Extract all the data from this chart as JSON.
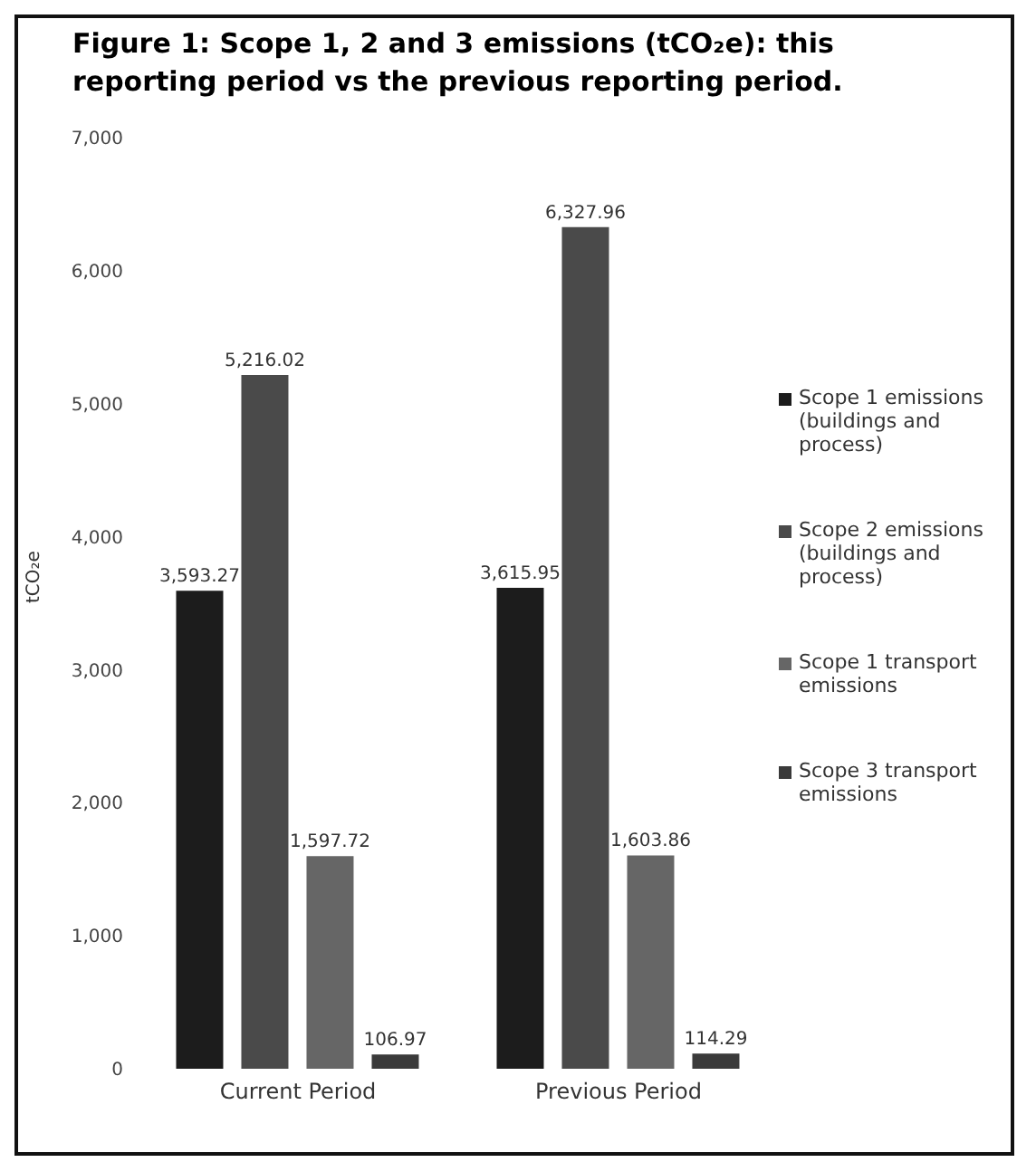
{
  "chart_data": {
    "type": "bar",
    "title": "Figure 1: Scope 1, 2 and 3 emissions (tCO₂e): this reporting period vs the previous reporting period.",
    "ylabel": "tCO₂e",
    "categories": [
      "Current Period",
      "Previous Period"
    ],
    "series": [
      {
        "name": "Scope 1 emissions (buildings and process)",
        "color": "#1c1c1c",
        "values": [
          3593.27,
          3615.95
        ],
        "value_labels": [
          "3,593.27",
          "3,615.95"
        ]
      },
      {
        "name": "Scope 2 emissions (buildings and process)",
        "color": "#4a4a4a",
        "values": [
          5216.02,
          6327.96
        ],
        "value_labels": [
          "5,216.02",
          "6,327.96"
        ]
      },
      {
        "name": "Scope 1 transport emissions",
        "color": "#666666",
        "values": [
          1597.72,
          1603.86
        ],
        "value_labels": [
          "1,597.72",
          "1,603.86"
        ]
      },
      {
        "name": "Scope 3 transport emissions",
        "color": "#3a3a3a",
        "values": [
          106.97,
          114.29
        ],
        "value_labels": [
          "106.97",
          "114.29"
        ]
      }
    ],
    "ylim": [
      0,
      7000
    ],
    "yticks": [
      {
        "value": 0,
        "label": "0"
      },
      {
        "value": 1000,
        "label": "1,000"
      },
      {
        "value": 2000,
        "label": "2,000"
      },
      {
        "value": 3000,
        "label": "3,000"
      },
      {
        "value": 4000,
        "label": "4,000"
      },
      {
        "value": 5000,
        "label": "5,000"
      },
      {
        "value": 6000,
        "label": "6,000"
      },
      {
        "value": 7000,
        "label": "7,000"
      }
    ],
    "grid": false,
    "legend": "right"
  }
}
